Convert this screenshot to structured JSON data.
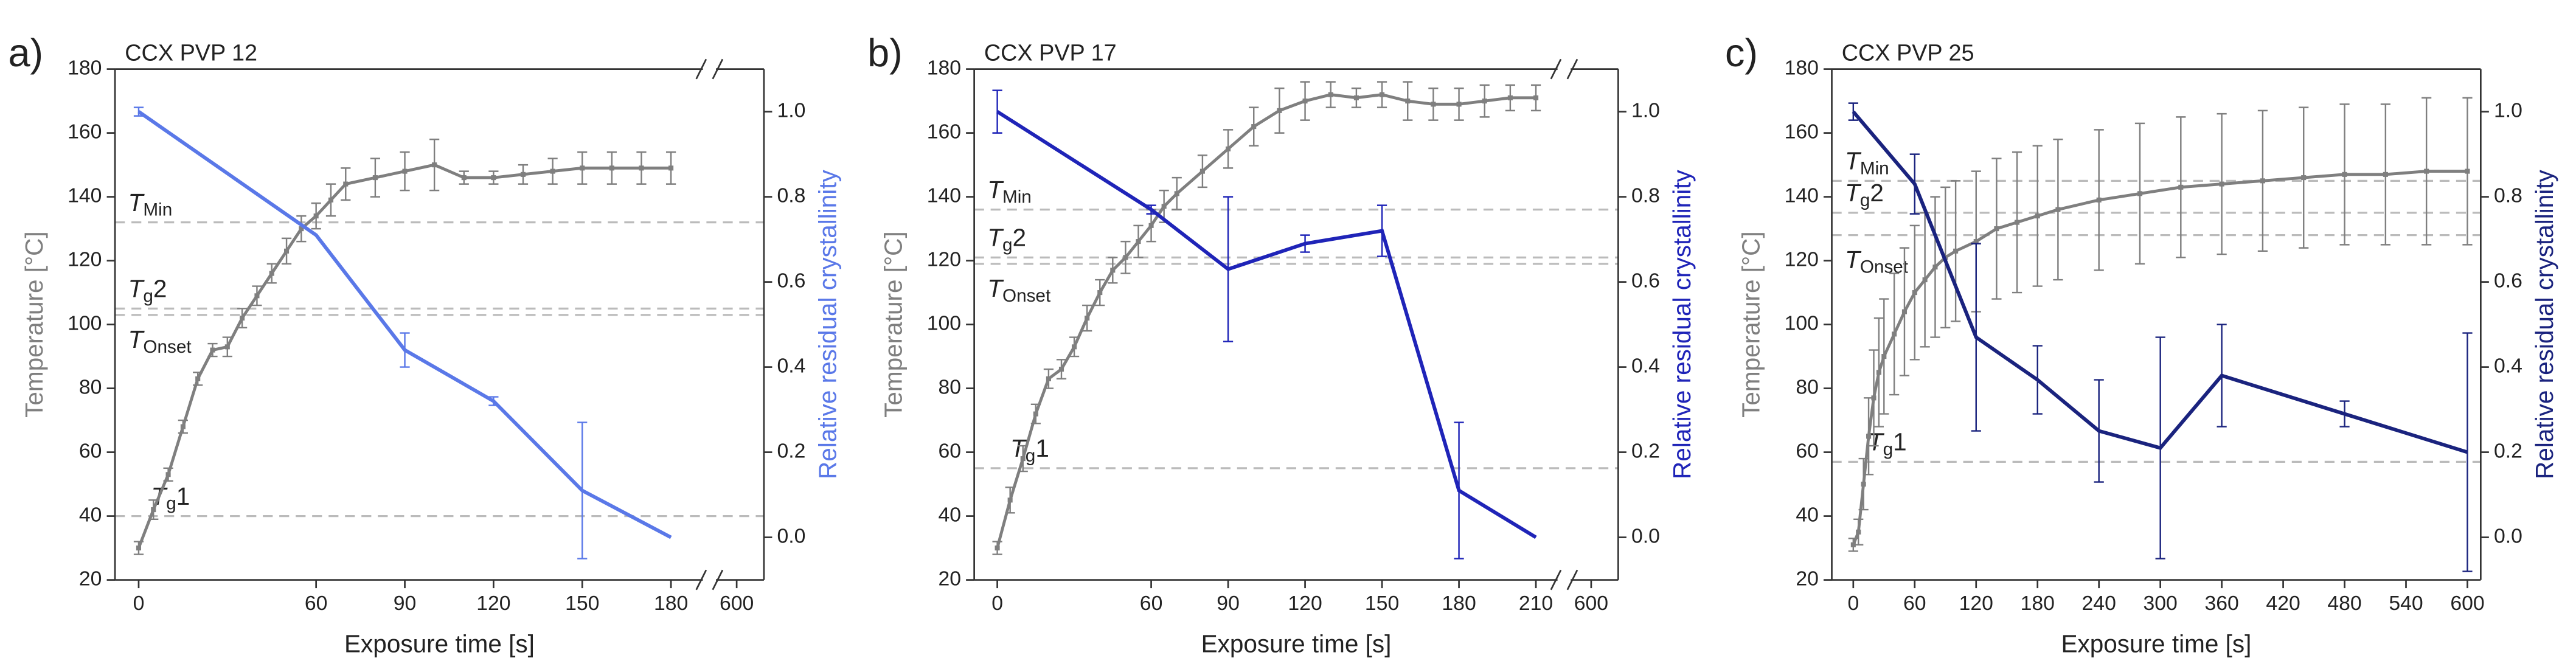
{
  "chart_data": [
    {
      "type": "line",
      "panel_label": "a)",
      "title": "CCX PVP 12",
      "xlabel": "Exposure time [s]",
      "ylabel": "Temperature [°C]",
      "y2label": "Relative residual crystallinity",
      "xlim": [
        -8,
        615
      ],
      "xbreak": [
        193,
        585
      ],
      "xticks": [
        0,
        60,
        90,
        120,
        150,
        180,
        600
      ],
      "ylim": [
        20,
        180
      ],
      "yticks": [
        20,
        40,
        60,
        80,
        100,
        120,
        140,
        160,
        180
      ],
      "y2lim": [
        -0.1,
        1.1
      ],
      "y2ticks": [
        {
          "value": 0,
          "label": "0.0"
        },
        0.2,
        0.4,
        0.6,
        0.8,
        {
          "value": 1,
          "label": "1.0"
        }
      ],
      "reference_lines": [
        {
          "value": 132,
          "symbol": "T",
          "subscript": "Min"
        },
        {
          "value": 105,
          "symbol": "T",
          "subscript": "g",
          "suffix": "2"
        },
        {
          "value": 103,
          "symbol": "T",
          "subscript": "Onset"
        },
        {
          "value": 40,
          "symbol": "T",
          "subscript": "g",
          "suffix": "1"
        }
      ],
      "series": [
        {
          "color": "#7f7f7f",
          "axis": "y",
          "markers": true,
          "x": [
            0,
            5,
            10,
            15,
            20,
            25,
            30,
            35,
            40,
            45,
            50,
            55,
            60,
            65,
            70,
            80,
            90,
            100,
            110,
            120,
            130,
            140,
            150,
            160,
            170,
            180
          ],
          "values": [
            30,
            42,
            53,
            68,
            83,
            92,
            93,
            102,
            109,
            116,
            123,
            130,
            134,
            139,
            144,
            146,
            148,
            150,
            146,
            146,
            147,
            148,
            149,
            149,
            149,
            149
          ],
          "errors": [
            2,
            3,
            2,
            2,
            2,
            2,
            3,
            3,
            3,
            3,
            4,
            4,
            4,
            5,
            5,
            6,
            6,
            8,
            2,
            2,
            3,
            4,
            5,
            5,
            5,
            5
          ]
        },
        {
          "color": "#5a78e8",
          "axis": "y2",
          "markers": false,
          "x": [
            0,
            60,
            90,
            120,
            150,
            180
          ],
          "values": [
            1.0,
            0.71,
            0.44,
            0.32,
            0.11,
            0.0
          ],
          "errors": [
            0.01,
            0,
            0.04,
            0.01,
            0.16,
            0
          ]
        }
      ]
    },
    {
      "type": "line",
      "panel_label": "b)",
      "title": "CCX PVP 17",
      "xlabel": "Exposure time [s]",
      "ylabel": "Temperature [°C]",
      "y2label": "Relative residual crystallinity",
      "xlim": [
        -9,
        615
      ],
      "xbreak": [
        221,
        585
      ],
      "xticks": [
        0,
        60,
        90,
        120,
        150,
        180,
        210,
        600
      ],
      "ylim": [
        20,
        180
      ],
      "yticks": [
        20,
        40,
        60,
        80,
        100,
        120,
        140,
        160,
        180
      ],
      "y2lim": [
        -0.1,
        1.1
      ],
      "y2ticks": [
        {
          "value": 0,
          "label": "0.0"
        },
        0.2,
        0.4,
        0.6,
        0.8,
        {
          "value": 1,
          "label": "1.0"
        }
      ],
      "reference_lines": [
        {
          "value": 136,
          "symbol": "T",
          "subscript": "Min"
        },
        {
          "value": 121,
          "symbol": "T",
          "subscript": "g",
          "suffix": "2"
        },
        {
          "value": 119,
          "symbol": "T",
          "subscript": "Onset"
        },
        {
          "value": 55,
          "symbol": "T",
          "subscript": "g",
          "suffix": "1"
        }
      ],
      "series": [
        {
          "color": "#7f7f7f",
          "axis": "y",
          "markers": true,
          "x": [
            0,
            5,
            10,
            15,
            20,
            25,
            30,
            35,
            40,
            45,
            50,
            55,
            60,
            65,
            70,
            80,
            90,
            100,
            110,
            120,
            130,
            140,
            150,
            160,
            170,
            180,
            190,
            200,
            210
          ],
          "values": [
            30,
            45,
            58,
            72,
            83,
            86,
            93,
            102,
            110,
            117,
            121,
            126,
            131,
            137,
            141,
            148,
            155,
            162,
            167,
            170,
            172,
            171,
            172,
            170,
            169,
            169,
            170,
            171,
            171
          ],
          "errors": [
            2,
            4,
            4,
            3,
            3,
            3,
            3,
            4,
            4,
            4,
            5,
            5,
            5,
            5,
            5,
            5,
            6,
            6,
            7,
            6,
            4,
            3,
            4,
            6,
            5,
            5,
            5,
            4,
            4
          ]
        },
        {
          "color": "#1f24b8",
          "axis": "y2",
          "markers": false,
          "x": [
            0,
            60,
            90,
            120,
            150,
            180,
            210
          ],
          "values": [
            1.0,
            0.77,
            0.63,
            0.69,
            0.72,
            0.11,
            0.0
          ],
          "errors": [
            0.05,
            0.01,
            0.17,
            0.02,
            0.06,
            0.16,
            0
          ]
        }
      ]
    },
    {
      "type": "line",
      "panel_label": "c)",
      "title": "CCX PVP 25",
      "xlabel": "Exposure time [s]",
      "ylabel": "Temperature [°C]",
      "y2label": "Relative residual crystallinity",
      "xlim": [
        -21,
        613
      ],
      "xticks": [
        0,
        60,
        120,
        180,
        240,
        300,
        360,
        420,
        480,
        540,
        600
      ],
      "ylim": [
        20,
        180
      ],
      "yticks": [
        20,
        40,
        60,
        80,
        100,
        120,
        140,
        160,
        180
      ],
      "y2lim": [
        -0.1,
        1.1
      ],
      "y2ticks": [
        {
          "value": 0,
          "label": "0.0"
        },
        0.2,
        0.4,
        0.6,
        0.8,
        {
          "value": 1,
          "label": "1.0"
        }
      ],
      "reference_lines": [
        {
          "value": 145,
          "symbol": "T",
          "subscript": "Min"
        },
        {
          "value": 135,
          "symbol": "T",
          "subscript": "g",
          "suffix": "2"
        },
        {
          "value": 128,
          "symbol": "T",
          "subscript": "Onset"
        },
        {
          "value": 57,
          "symbol": "T",
          "subscript": "g",
          "suffix": "1"
        }
      ],
      "series": [
        {
          "color": "#7f7f7f",
          "axis": "y",
          "markers": true,
          "x": [
            0,
            5,
            10,
            15,
            20,
            25,
            30,
            40,
            50,
            60,
            70,
            80,
            90,
            100,
            120,
            140,
            160,
            180,
            200,
            240,
            280,
            320,
            360,
            400,
            440,
            480,
            520,
            560,
            600
          ],
          "values": [
            31,
            35,
            50,
            65,
            77,
            85,
            90,
            97,
            104,
            110,
            114,
            118,
            121,
            123,
            126,
            130,
            132,
            134,
            136,
            139,
            141,
            143,
            144,
            145,
            146,
            147,
            147,
            148,
            148
          ],
          "errors": [
            2,
            4,
            8,
            12,
            15,
            17,
            18,
            19,
            20,
            21,
            21,
            22,
            22,
            22,
            22,
            22,
            22,
            22,
            22,
            22,
            22,
            22,
            22,
            22,
            22,
            22,
            22,
            23,
            23
          ]
        },
        {
          "color": "#1a237e",
          "axis": "y2",
          "markers": false,
          "x": [
            0,
            60,
            120,
            180,
            240,
            300,
            360,
            480,
            600
          ],
          "values": [
            1.0,
            0.83,
            0.47,
            0.37,
            0.25,
            0.21,
            0.38,
            0.29,
            0.2
          ],
          "errors": [
            0.02,
            0.07,
            0.22,
            0.08,
            0.12,
            0.26,
            0.12,
            0.03,
            0.28
          ]
        }
      ]
    }
  ]
}
